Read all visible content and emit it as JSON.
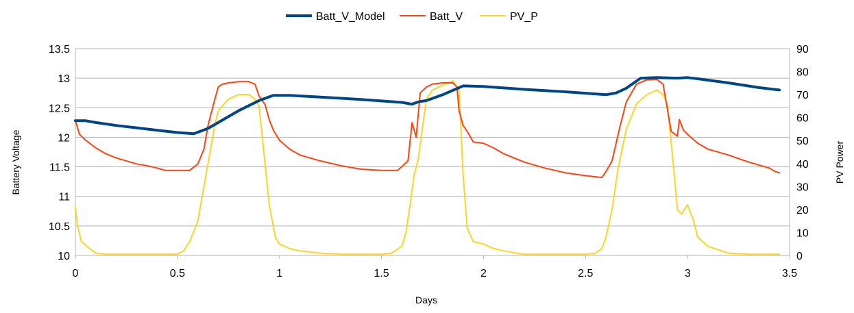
{
  "chart_data": {
    "type": "line",
    "title": "",
    "xlabel": "Days",
    "ylabel_left": "Battery Voltage",
    "ylabel_right": "PV Power",
    "xlim": [
      0,
      3.5
    ],
    "ylim_left": [
      10,
      13.5
    ],
    "ylim_right": [
      0,
      90
    ],
    "x_ticks": [
      "0",
      "0.5",
      "1",
      "1.5",
      "2",
      "2.5",
      "3",
      "3.5"
    ],
    "x_tick_values": [
      0,
      0.5,
      1,
      1.5,
      2,
      2.5,
      3,
      3.5
    ],
    "y_left_ticks": [
      "10",
      "10.5",
      "11",
      "11.5",
      "12",
      "12.5",
      "13",
      "13.5"
    ],
    "y_left_tick_values": [
      10,
      10.5,
      11,
      11.5,
      12,
      12.5,
      13,
      13.5
    ],
    "y_right_ticks": [
      "0",
      "10",
      "20",
      "30",
      "40",
      "50",
      "60",
      "70",
      "80",
      "90"
    ],
    "y_right_tick_values": [
      0,
      10,
      20,
      30,
      40,
      50,
      60,
      70,
      80,
      90
    ],
    "grid": "horizontal",
    "legend_position": "top",
    "series": [
      {
        "name": "Batt_V_Model",
        "axis": "left",
        "color": "#004586",
        "x": [
          0,
          0.05,
          0.1,
          0.2,
          0.3,
          0.4,
          0.5,
          0.58,
          0.65,
          0.7,
          0.8,
          0.9,
          0.97,
          1.05,
          1.2,
          1.4,
          1.6,
          1.65,
          1.68,
          1.72,
          1.8,
          1.9,
          2.0,
          2.2,
          2.4,
          2.6,
          2.65,
          2.7,
          2.77,
          2.85,
          2.95,
          3.0,
          3.05,
          3.2,
          3.35,
          3.45
        ],
        "values": [
          12.28,
          12.28,
          12.25,
          12.2,
          12.16,
          12.12,
          12.08,
          12.06,
          12.15,
          12.25,
          12.45,
          12.62,
          12.71,
          12.71,
          12.68,
          12.64,
          12.59,
          12.56,
          12.6,
          12.62,
          12.72,
          12.87,
          12.86,
          12.81,
          12.77,
          12.72,
          12.75,
          12.83,
          13.0,
          13.01,
          13.0,
          13.01,
          12.99,
          12.92,
          12.84,
          12.8
        ]
      },
      {
        "name": "Batt_V",
        "axis": "left",
        "color": "#ff420e",
        "x": [
          0,
          0.02,
          0.05,
          0.1,
          0.15,
          0.2,
          0.27,
          0.3,
          0.35,
          0.4,
          0.44,
          0.5,
          0.56,
          0.6,
          0.63,
          0.65,
          0.68,
          0.7,
          0.72,
          0.75,
          0.8,
          0.85,
          0.88,
          0.9,
          0.93,
          0.95,
          0.97,
          1.0,
          1.05,
          1.1,
          1.2,
          1.3,
          1.4,
          1.5,
          1.58,
          1.63,
          1.65,
          1.67,
          1.69,
          1.72,
          1.75,
          1.8,
          1.85,
          1.87,
          1.88,
          1.9,
          1.92,
          1.95,
          2.0,
          2.05,
          2.1,
          2.2,
          2.3,
          2.4,
          2.5,
          2.58,
          2.6,
          2.63,
          2.67,
          2.7,
          2.75,
          2.8,
          2.85,
          2.88,
          2.9,
          2.92,
          2.95,
          2.96,
          2.98,
          3.0,
          3.05,
          3.1,
          3.2,
          3.3,
          3.4,
          3.43,
          3.45
        ],
        "values": [
          12.28,
          12.05,
          11.95,
          11.82,
          11.72,
          11.65,
          11.58,
          11.55,
          11.52,
          11.48,
          11.44,
          11.44,
          11.44,
          11.55,
          11.8,
          12.2,
          12.6,
          12.85,
          12.9,
          12.92,
          12.94,
          12.94,
          12.9,
          12.7,
          12.55,
          12.3,
          12.12,
          11.95,
          11.8,
          11.7,
          11.6,
          11.52,
          11.46,
          11.44,
          11.44,
          11.6,
          12.25,
          12.0,
          12.75,
          12.85,
          12.9,
          12.92,
          12.92,
          12.85,
          12.45,
          12.2,
          12.1,
          11.92,
          11.9,
          11.82,
          11.72,
          11.58,
          11.48,
          11.4,
          11.35,
          11.32,
          11.42,
          11.6,
          12.2,
          12.6,
          12.9,
          12.97,
          12.98,
          12.9,
          12.5,
          12.1,
          12.02,
          12.3,
          12.12,
          12.05,
          11.9,
          11.8,
          11.7,
          11.58,
          11.48,
          11.42,
          11.4
        ]
      },
      {
        "name": "PV_P",
        "axis": "right",
        "color": "#ffd320",
        "x": [
          0,
          0.01,
          0.03,
          0.07,
          0.1,
          0.15,
          0.2,
          0.3,
          0.4,
          0.5,
          0.53,
          0.56,
          0.6,
          0.63,
          0.65,
          0.68,
          0.7,
          0.73,
          0.75,
          0.8,
          0.85,
          0.88,
          0.9,
          0.92,
          0.95,
          0.98,
          1.0,
          1.05,
          1.1,
          1.2,
          1.3,
          1.4,
          1.5,
          1.55,
          1.6,
          1.62,
          1.64,
          1.66,
          1.68,
          1.7,
          1.72,
          1.75,
          1.8,
          1.85,
          1.88,
          1.9,
          1.92,
          1.95,
          2.0,
          2.05,
          2.1,
          2.2,
          2.3,
          2.4,
          2.5,
          2.55,
          2.58,
          2.6,
          2.63,
          2.66,
          2.7,
          2.75,
          2.8,
          2.85,
          2.88,
          2.9,
          2.93,
          2.95,
          2.97,
          3.0,
          3.03,
          3.05,
          3.1,
          3.2,
          3.3,
          3.4,
          3.45
        ],
        "values": [
          21,
          13,
          6,
          3,
          1,
          0.5,
          0.5,
          0.5,
          0.5,
          0.5,
          2,
          6,
          15,
          30,
          40,
          55,
          63,
          66,
          68,
          70,
          70,
          68,
          65,
          48,
          22,
          8,
          5,
          3,
          2,
          1,
          0.5,
          0.5,
          0.5,
          1,
          4,
          10,
          22,
          35,
          42,
          55,
          68,
          72,
          74,
          76,
          72,
          35,
          12,
          6,
          5,
          3,
          2,
          0.5,
          0.5,
          0.5,
          0.5,
          1,
          3,
          8,
          20,
          38,
          55,
          66,
          70,
          72,
          70,
          66,
          40,
          20,
          18,
          22,
          15,
          8,
          4,
          1,
          0.5,
          0.5,
          0.5
        ]
      }
    ]
  }
}
